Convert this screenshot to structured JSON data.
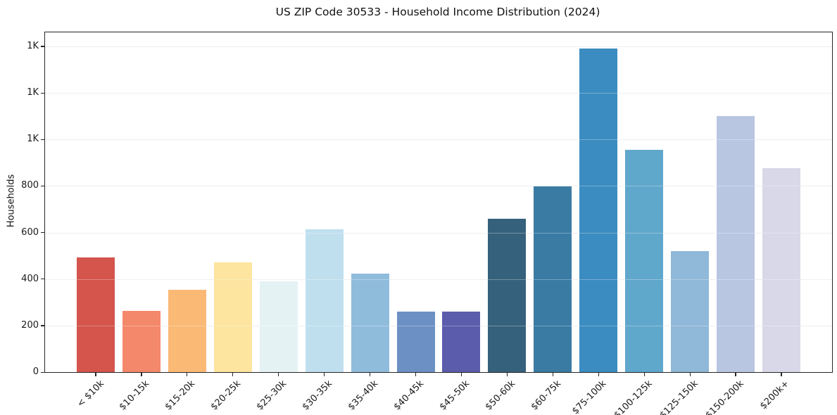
{
  "chart_data": {
    "type": "bar",
    "title": "US ZIP Code 30533 - Household Income Distribution (2024)",
    "xlabel": "",
    "ylabel": "Households",
    "legend": "none",
    "grid": "horizontal",
    "ylim": [
      0,
      1460
    ],
    "categories": [
      "< $10k",
      "$10-15k",
      "$15-20k",
      "$20-25k",
      "$25-30k",
      "$30-35k",
      "$35-40k",
      "$40-45k",
      "$45-50k",
      "$50-60k",
      "$60-75k",
      "$75-100k",
      "$100-125k",
      "$125-150k",
      "$150-200k",
      "$200k+"
    ],
    "values": [
      493,
      262,
      353,
      471,
      390,
      614,
      424,
      260,
      261,
      658,
      797,
      1390,
      955,
      520,
      1100,
      876
    ],
    "bar_colors": [
      "#d5544c",
      "#f4886a",
      "#fbb976",
      "#fde5a0",
      "#e5f2f4",
      "#bfdfee",
      "#90bcdc",
      "#6c90c4",
      "#5c5cac",
      "#36617c",
      "#3a7ba4",
      "#3b8cc0",
      "#60a7cc",
      "#90b8d8",
      "#b8c6e2",
      "#d8d8e8"
    ],
    "yticks": [
      {
        "value": 0,
        "label": "0"
      },
      {
        "value": 200,
        "label": "200"
      },
      {
        "value": 400,
        "label": "400"
      },
      {
        "value": 600,
        "label": "600"
      },
      {
        "value": 800,
        "label": "800"
      },
      {
        "value": 1000,
        "label": "1K"
      },
      {
        "value": 1200,
        "label": "1K"
      },
      {
        "value": 1400,
        "label": "1K"
      }
    ]
  },
  "colors": {
    "background": "#ffffff",
    "spine": "#262626",
    "gridline": "#e8e8e8",
    "text": "#1a1a1a"
  }
}
